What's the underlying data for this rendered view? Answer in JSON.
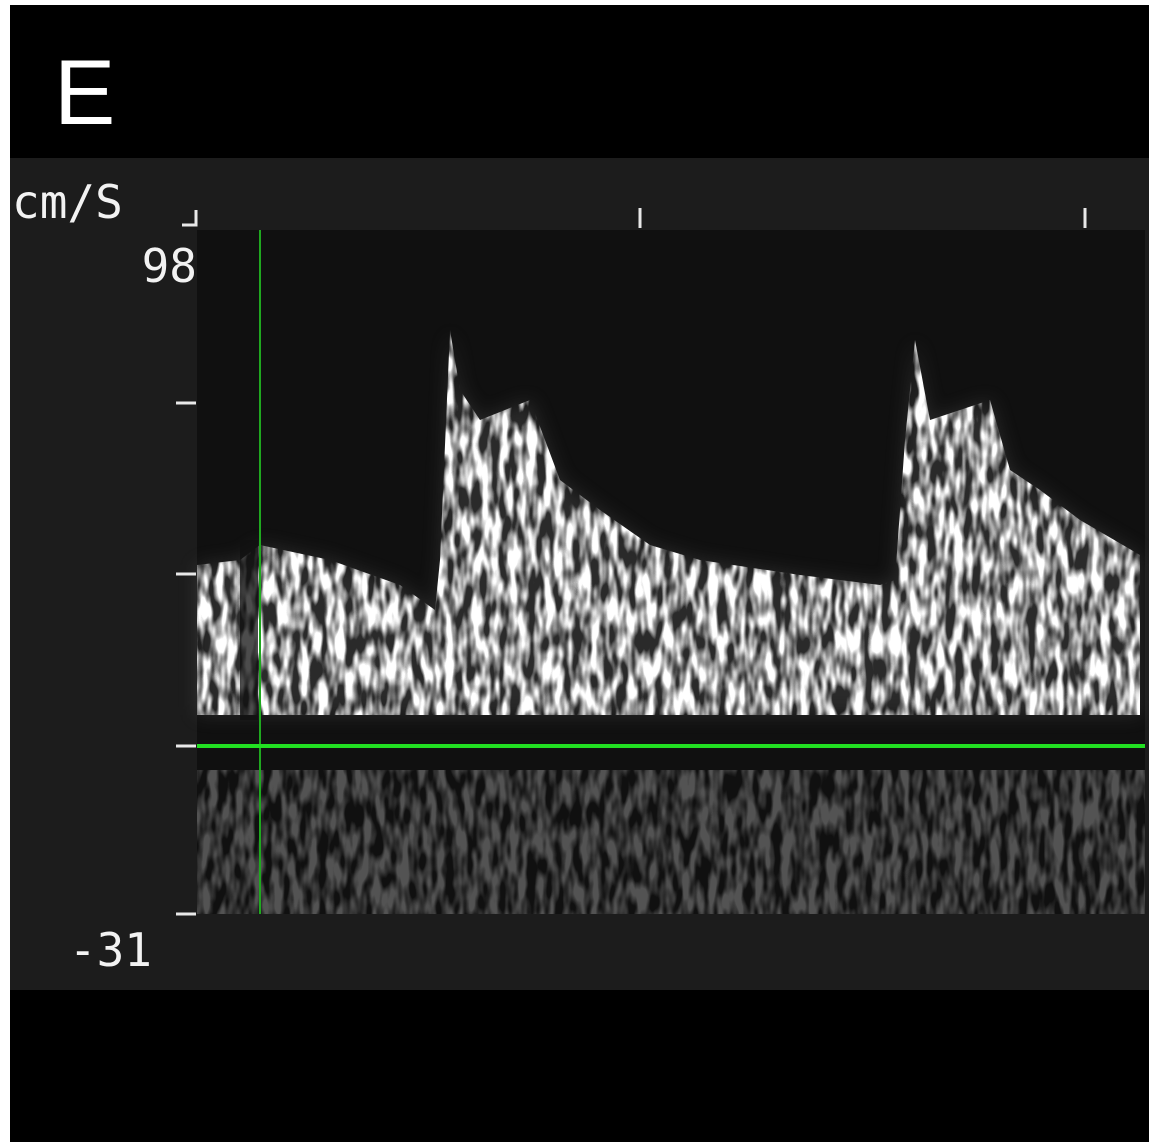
{
  "panel_label": "E",
  "axis": {
    "unit": "cm/S",
    "top_label": "98",
    "bottom_label": "-31"
  }
}
